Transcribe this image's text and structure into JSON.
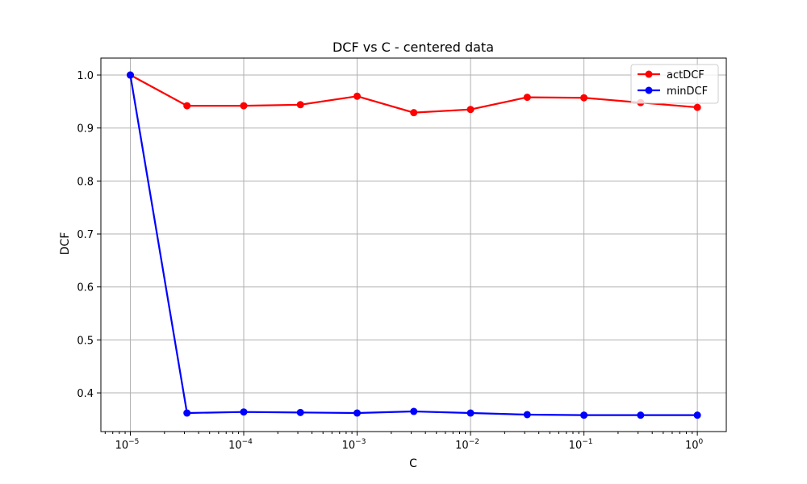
{
  "chart_data": {
    "type": "line",
    "title": "DCF vs C - centered data",
    "xlabel": "C",
    "ylabel": "DCF",
    "xscale": "log",
    "xlim": [
      5.5e-06,
      1.8
    ],
    "ylim": [
      0.327,
      1.032
    ],
    "xticks": [
      {
        "value": 1e-05,
        "base": "10",
        "exp": "−5"
      },
      {
        "value": 0.0001,
        "base": "10",
        "exp": "−4"
      },
      {
        "value": 0.001,
        "base": "10",
        "exp": "−3"
      },
      {
        "value": 0.01,
        "base": "10",
        "exp": "−2"
      },
      {
        "value": 0.1,
        "base": "10",
        "exp": "−1"
      },
      {
        "value": 1,
        "base": "10",
        "exp": "0"
      }
    ],
    "yticks": [
      {
        "value": 0.4,
        "label": "0.4"
      },
      {
        "value": 0.5,
        "label": "0.5"
      },
      {
        "value": 0.6,
        "label": "0.6"
      },
      {
        "value": 0.7,
        "label": "0.7"
      },
      {
        "value": 0.8,
        "label": "0.8"
      },
      {
        "value": 0.9,
        "label": "0.9"
      },
      {
        "value": 1.0,
        "label": "1.0"
      }
    ],
    "grid": true,
    "legend_position": "top-right",
    "x": [
      1e-05,
      3.16e-05,
      0.0001,
      0.000316,
      0.001,
      0.00316,
      0.01,
      0.0316,
      0.1,
      0.316,
      1
    ],
    "series": [
      {
        "name": "actDCF",
        "color": "#ff0000",
        "values": [
          1.0,
          0.942,
          0.942,
          0.944,
          0.96,
          0.929,
          0.935,
          0.958,
          0.957,
          0.948,
          0.939
        ]
      },
      {
        "name": "minDCF",
        "color": "#0000ff",
        "values": [
          1.0,
          0.362,
          0.364,
          0.363,
          0.362,
          0.365,
          0.362,
          0.359,
          0.358,
          0.358,
          0.358
        ]
      }
    ]
  }
}
